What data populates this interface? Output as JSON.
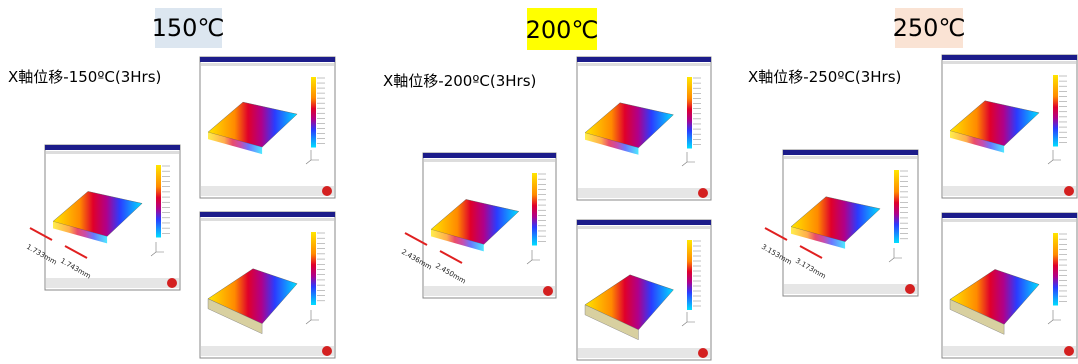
{
  "panels": [
    {
      "header": "150℃",
      "title": "X軸位移-150ºC(3Hrs)",
      "measurements": [
        "1.733mm",
        "1.743mm"
      ]
    },
    {
      "header": "200℃",
      "title": "X軸位移-200ºC(3Hrs)",
      "measurements": [
        "2.436mm",
        "2.450mm"
      ]
    },
    {
      "header": "250℃",
      "title": "X軸位移-250ºC(3Hrs)",
      "measurements": [
        "3.153mm",
        "3.173mm"
      ]
    }
  ]
}
